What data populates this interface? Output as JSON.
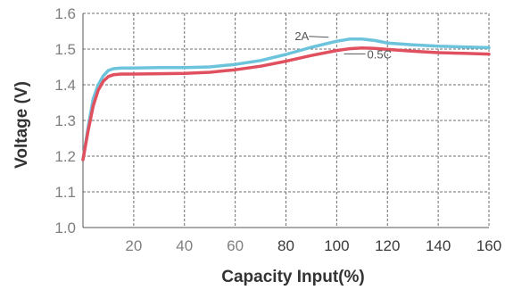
{
  "chart_data": {
    "type": "line",
    "xlabel": "Capacity Input(%)",
    "ylabel": "Voltage (V)",
    "xlim": [
      0,
      160
    ],
    "ylim": [
      1.0,
      1.6
    ],
    "x_ticks": [
      20,
      40,
      60,
      80,
      100,
      120,
      140,
      160
    ],
    "y_ticks": [
      "1.0",
      "1.1",
      "1.2",
      "1.3",
      "1.4",
      "1.5",
      "1.6"
    ],
    "grid": true,
    "series": [
      {
        "name": "2A",
        "color": "#6cc3dc",
        "points": [
          [
            0,
            1.19
          ],
          [
            2,
            1.28
          ],
          [
            4,
            1.36
          ],
          [
            6,
            1.4
          ],
          [
            8,
            1.425
          ],
          [
            10,
            1.44
          ],
          [
            12,
            1.445
          ],
          [
            15,
            1.447
          ],
          [
            20,
            1.447
          ],
          [
            30,
            1.448
          ],
          [
            40,
            1.448
          ],
          [
            50,
            1.45
          ],
          [
            60,
            1.457
          ],
          [
            70,
            1.468
          ],
          [
            80,
            1.485
          ],
          [
            90,
            1.505
          ],
          [
            100,
            1.522
          ],
          [
            105,
            1.528
          ],
          [
            110,
            1.528
          ],
          [
            115,
            1.524
          ],
          [
            120,
            1.517
          ],
          [
            130,
            1.512
          ],
          [
            140,
            1.508
          ],
          [
            150,
            1.506
          ],
          [
            160,
            1.504
          ]
        ]
      },
      {
        "name": "0.5C",
        "color": "#e0505f",
        "points": [
          [
            0,
            1.19
          ],
          [
            2,
            1.27
          ],
          [
            4,
            1.34
          ],
          [
            6,
            1.385
          ],
          [
            8,
            1.41
          ],
          [
            10,
            1.423
          ],
          [
            12,
            1.428
          ],
          [
            15,
            1.43
          ],
          [
            20,
            1.43
          ],
          [
            30,
            1.431
          ],
          [
            40,
            1.432
          ],
          [
            50,
            1.435
          ],
          [
            60,
            1.442
          ],
          [
            70,
            1.452
          ],
          [
            80,
            1.466
          ],
          [
            90,
            1.482
          ],
          [
            100,
            1.496
          ],
          [
            105,
            1.501
          ],
          [
            110,
            1.503
          ],
          [
            115,
            1.502
          ],
          [
            120,
            1.499
          ],
          [
            130,
            1.494
          ],
          [
            140,
            1.49
          ],
          [
            150,
            1.488
          ],
          [
            160,
            1.486
          ]
        ]
      }
    ],
    "annotations": [
      {
        "text": "2A",
        "series": 0
      },
      {
        "text": "0.5C",
        "series": 1
      }
    ]
  }
}
